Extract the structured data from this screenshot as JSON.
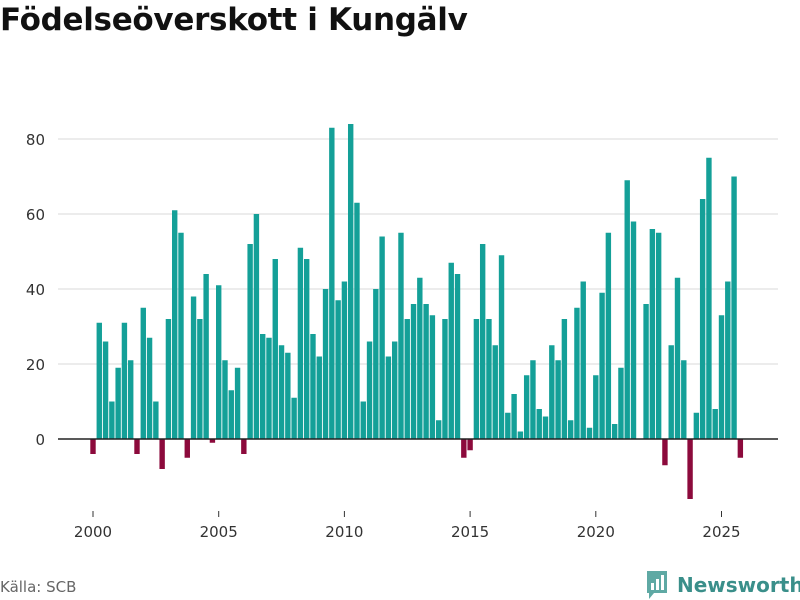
{
  "chart_data": {
    "type": "bar",
    "title": "Födelseöverskott i Kungälv",
    "xlabel": "",
    "ylabel": "",
    "x_tick_labels": [
      "2000",
      "2005",
      "2010",
      "2015",
      "2020",
      "2025"
    ],
    "y_tick_labels": [
      "0",
      "20",
      "40",
      "60",
      "80"
    ],
    "ylim": [
      -17,
      88
    ],
    "grid": true,
    "colors": {
      "positive": "#14a098",
      "negative": "#8c0a3c",
      "grid": "#d9d9d9",
      "zero_line": "#222222"
    },
    "series": [
      {
        "values": [
          -4,
          31,
          26,
          10,
          19,
          31,
          21,
          -4,
          35,
          27,
          10,
          -8,
          32,
          61,
          55,
          -5,
          38,
          32,
          44,
          -1,
          41,
          21,
          13,
          19,
          -4,
          52,
          60,
          28,
          27,
          48,
          25,
          23,
          11,
          51,
          48,
          28,
          22,
          40,
          83,
          37,
          42,
          84,
          63,
          10,
          26,
          40,
          54,
          22,
          26,
          55,
          32,
          36,
          43,
          36,
          33,
          5,
          32,
          47,
          44,
          -5,
          -3,
          32,
          52,
          32,
          25,
          49,
          7,
          12,
          2,
          17,
          21,
          8,
          6,
          25,
          21,
          32,
          5,
          35,
          42,
          3,
          17,
          39,
          55,
          4,
          19,
          69,
          58,
          0,
          36,
          56,
          55,
          -7,
          25,
          43,
          21,
          -16,
          7,
          64,
          75,
          8,
          33,
          42,
          70,
          -5
        ]
      }
    ]
  },
  "footer": {
    "source": "Källa: SCB",
    "brand": "Newsworthy"
  }
}
